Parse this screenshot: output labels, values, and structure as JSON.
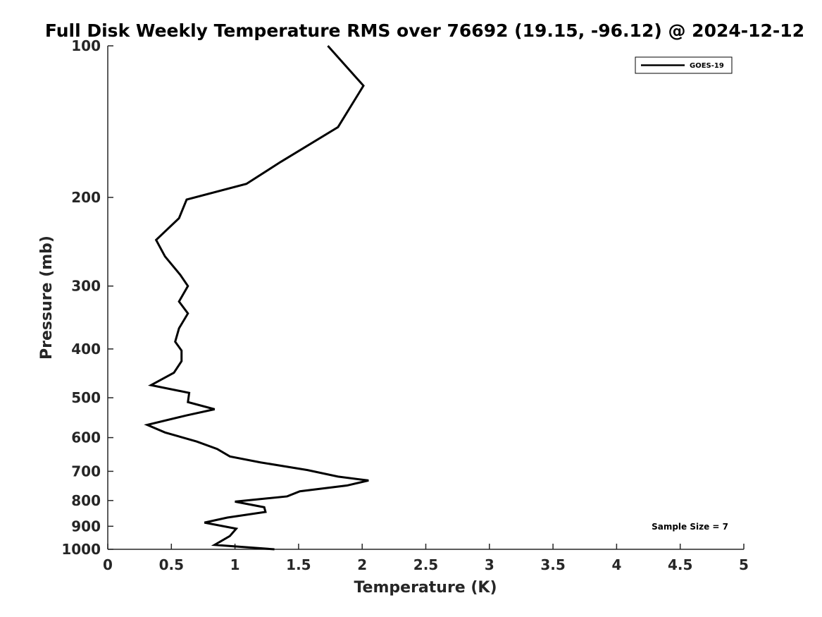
{
  "chart_data": {
    "type": "line",
    "title": "Full Disk Weekly Temperature RMS over 76692 (19.15, -96.12) @ 2024-12-12",
    "xlabel": "Temperature (K)",
    "ylabel": "Pressure (mb)",
    "xlim": [
      0,
      5
    ],
    "ylim": [
      100,
      1000
    ],
    "y_scale": "log",
    "y_reversed": true,
    "x_ticks": [
      0,
      0.5,
      1,
      1.5,
      2,
      2.5,
      3,
      3.5,
      4,
      4.5,
      5
    ],
    "x_tick_labels": [
      "0",
      "0.5",
      "1",
      "1.5",
      "2",
      "2.5",
      "3",
      "3.5",
      "4",
      "4.5",
      "5"
    ],
    "y_ticks": [
      100,
      200,
      300,
      400,
      500,
      600,
      700,
      800,
      900,
      1000
    ],
    "y_tick_labels": [
      "100",
      "200",
      "300",
      "400",
      "500",
      "600",
      "700",
      "800",
      "900",
      "1000"
    ],
    "grid": false,
    "legend_position": "top-right",
    "annotation": "Sample Size = 7",
    "series": [
      {
        "name": "GOES-19",
        "color": "#000000",
        "points": [
          [
            1.73,
            100
          ],
          [
            2.01,
            120
          ],
          [
            1.81,
            145
          ],
          [
            1.36,
            170
          ],
          [
            1.09,
            188
          ],
          [
            0.62,
            202
          ],
          [
            0.56,
            220
          ],
          [
            0.38,
            243
          ],
          [
            0.45,
            262
          ],
          [
            0.57,
            285
          ],
          [
            0.63,
            300
          ],
          [
            0.56,
            322
          ],
          [
            0.63,
            340
          ],
          [
            0.56,
            364
          ],
          [
            0.53,
            387
          ],
          [
            0.58,
            403
          ],
          [
            0.58,
            423
          ],
          [
            0.52,
            446
          ],
          [
            0.34,
            472
          ],
          [
            0.64,
            489
          ],
          [
            0.63,
            510
          ],
          [
            0.84,
            527
          ],
          [
            0.62,
            542
          ],
          [
            0.31,
            566
          ],
          [
            0.45,
            586
          ],
          [
            0.7,
            611
          ],
          [
            0.86,
            632
          ],
          [
            0.96,
            654
          ],
          [
            1.2,
            672
          ],
          [
            1.57,
            696
          ],
          [
            1.81,
            717
          ],
          [
            2.05,
            730
          ],
          [
            1.88,
            747
          ],
          [
            1.51,
            767
          ],
          [
            1.41,
            785
          ],
          [
            1.0,
            804
          ],
          [
            1.23,
            825
          ],
          [
            1.24,
            843
          ],
          [
            0.94,
            865
          ],
          [
            0.76,
            885
          ],
          [
            1.01,
            910
          ],
          [
            0.96,
            941
          ],
          [
            0.84,
            980
          ],
          [
            1.31,
            1000
          ]
        ]
      }
    ]
  }
}
